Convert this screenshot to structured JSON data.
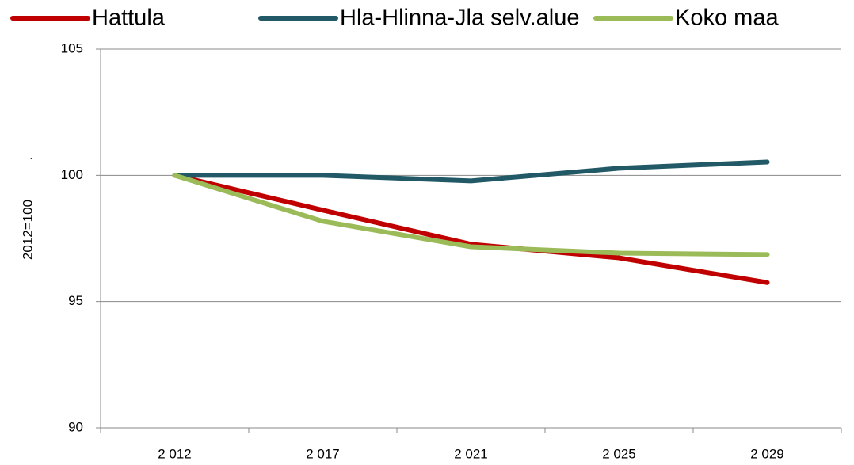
{
  "chart_data": {
    "type": "line",
    "categories": [
      "2 012",
      "2 017",
      "2 021",
      "2 025",
      "2 029"
    ],
    "series": [
      {
        "name": "Hattula",
        "color": "#c00000",
        "values": [
          100,
          98.62,
          97.27,
          96.73,
          95.75
        ]
      },
      {
        "name": "Hla-Hlinna-Jla selv.alue",
        "color": "#215967",
        "values": [
          100,
          100,
          99.78,
          100.28,
          100.53
        ]
      },
      {
        "name": "Koko maa",
        "color": "#9bbb59",
        "values": [
          100,
          98.18,
          97.17,
          96.92,
          96.86
        ]
      }
    ],
    "y_label": "2012=100",
    "y_label_note": ".",
    "ylim": [
      90,
      105
    ],
    "yticks": [
      90,
      95,
      100,
      105
    ],
    "grid": true
  }
}
